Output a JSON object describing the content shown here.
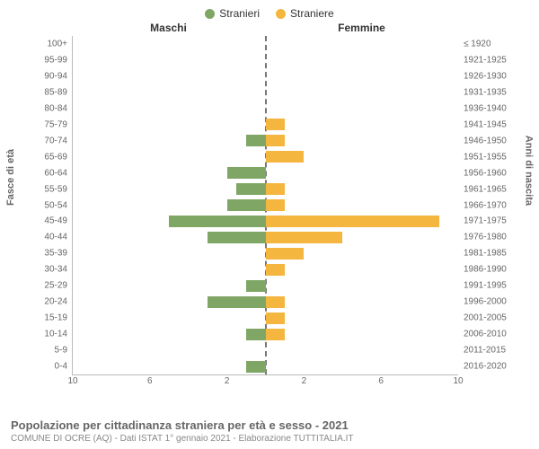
{
  "legend": {
    "male": {
      "label": "Stranieri",
      "color": "#7fa665"
    },
    "female": {
      "label": "Straniere",
      "color": "#f5b63f"
    }
  },
  "column_headers": {
    "left": "Maschi",
    "right": "Femmine"
  },
  "axis_titles": {
    "left": "Fasce di età",
    "right": "Anni di nascita"
  },
  "footer": {
    "title": "Popolazione per cittadinanza straniera per età e sesso - 2021",
    "subtitle": "COMUNE DI OCRE (AQ) - Dati ISTAT 1° gennaio 2021 - Elaborazione TUTTITALIA.IT"
  },
  "chart": {
    "type": "pyramid-bar",
    "xmax": 10,
    "xticks_left": [
      10,
      6,
      2
    ],
    "xticks_right": [
      2,
      6,
      10
    ],
    "background_color": "#ffffff",
    "centerline_color": "#777777",
    "axis_color": "#bbbbbb",
    "tick_color": "#666666",
    "rows": [
      {
        "age": "100+",
        "birth": "≤ 1920",
        "m": 0,
        "f": 0
      },
      {
        "age": "95-99",
        "birth": "1921-1925",
        "m": 0,
        "f": 0
      },
      {
        "age": "90-94",
        "birth": "1926-1930",
        "m": 0,
        "f": 0
      },
      {
        "age": "85-89",
        "birth": "1931-1935",
        "m": 0,
        "f": 0
      },
      {
        "age": "80-84",
        "birth": "1936-1940",
        "m": 0,
        "f": 0
      },
      {
        "age": "75-79",
        "birth": "1941-1945",
        "m": 0,
        "f": 1
      },
      {
        "age": "70-74",
        "birth": "1946-1950",
        "m": 1,
        "f": 1
      },
      {
        "age": "65-69",
        "birth": "1951-1955",
        "m": 0,
        "f": 2
      },
      {
        "age": "60-64",
        "birth": "1956-1960",
        "m": 2,
        "f": 0
      },
      {
        "age": "55-59",
        "birth": "1961-1965",
        "m": 1.5,
        "f": 1
      },
      {
        "age": "50-54",
        "birth": "1966-1970",
        "m": 2,
        "f": 1
      },
      {
        "age": "45-49",
        "birth": "1971-1975",
        "m": 5,
        "f": 9
      },
      {
        "age": "40-44",
        "birth": "1976-1980",
        "m": 3,
        "f": 4
      },
      {
        "age": "35-39",
        "birth": "1981-1985",
        "m": 0,
        "f": 2
      },
      {
        "age": "30-34",
        "birth": "1986-1990",
        "m": 0,
        "f": 1
      },
      {
        "age": "25-29",
        "birth": "1991-1995",
        "m": 1,
        "f": 0
      },
      {
        "age": "20-24",
        "birth": "1996-2000",
        "m": 3,
        "f": 1
      },
      {
        "age": "15-19",
        "birth": "2001-2005",
        "m": 0,
        "f": 1
      },
      {
        "age": "10-14",
        "birth": "2006-2010",
        "m": 1,
        "f": 1
      },
      {
        "age": "5-9",
        "birth": "2011-2015",
        "m": 0,
        "f": 0
      },
      {
        "age": "0-4",
        "birth": "2016-2020",
        "m": 1,
        "f": 0
      }
    ]
  }
}
